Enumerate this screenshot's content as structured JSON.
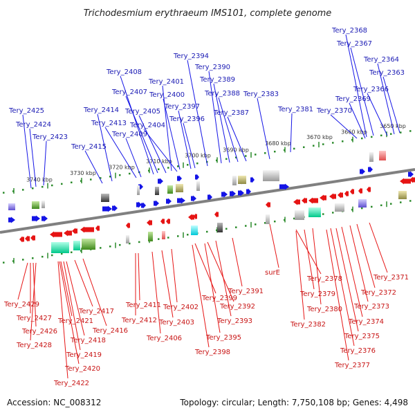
{
  "title": "Trichodesmium erythraeum IMS101, complete genome",
  "footer": {
    "accession": "Accession: NC_008312",
    "summary": "Topology: circular; Length: 7,750,108 bp; Genes: 4,498"
  },
  "colors": {
    "forward": "#1414e6",
    "reverse": "#e61414",
    "backbone": "#808080",
    "tick": "#2a8a2a"
  },
  "ticks": [
    "3740 kbp",
    "3730 kbp",
    "3720 kbp",
    "3710 kbp",
    "3700 kbp",
    "3690 kbp",
    "3680 kbp",
    "3670 kbp",
    "3660 kbp",
    "3650 kbp"
  ],
  "forward_genes": [
    "Tery_2425",
    "Tery_2424",
    "Tery_2423",
    "Tery_2415",
    "Tery_2414",
    "Tery_2413",
    "Tery_2409",
    "Tery_2408",
    "Tery_2407",
    "Tery_2405",
    "Tery_2404",
    "Tery_2401",
    "Tery_2400",
    "Tery_2397",
    "Tery_2396",
    "Tery_2394",
    "Tery_2390",
    "Tery_2389",
    "Tery_2388",
    "Tery_2387",
    "Tery_2383",
    "Tery_2381",
    "Tery_2370",
    "Tery_2369",
    "Tery_2368",
    "Tery_2367",
    "Tery_2366",
    "Tery_2364",
    "Tery_2363"
  ],
  "reverse_genes": [
    "Tery_2429",
    "Tery_2427",
    "Tery_2426",
    "Tery_2428",
    "Tery_2421",
    "Tery_2417",
    "Tery_2418",
    "Tery_2416",
    "Tery_2419",
    "Tery_2420",
    "Tery_2422",
    "Tery_2411",
    "Tery_2412",
    "Tery_2406",
    "Tery_2402",
    "Tery_2403",
    "Tery_2399",
    "Tery_2392",
    "Tery_2391",
    "Tery_2393",
    "Tery_2395",
    "Tery_2398",
    "surE",
    "Tery_2378",
    "Tery_2379",
    "Tery_2380",
    "Tery_2382",
    "Tery_2371",
    "Tery_2372",
    "Tery_2373",
    "Tery_2374",
    "Tery_2375",
    "Tery_2376",
    "Tery_2377"
  ]
}
